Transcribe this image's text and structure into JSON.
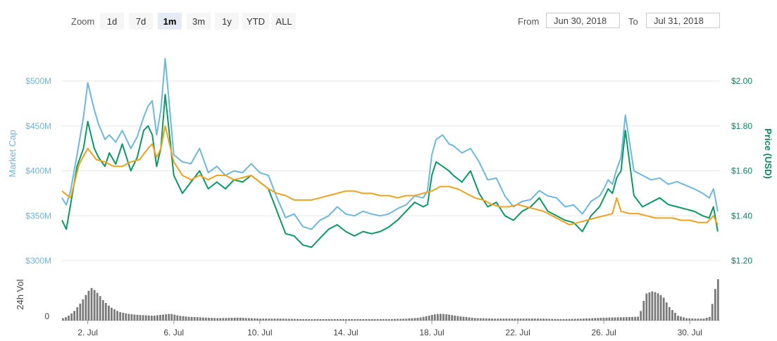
{
  "zoom": {
    "label": "Zoom",
    "buttons": [
      "1d",
      "7d",
      "1m",
      "3m",
      "1y",
      "YTD",
      "ALL"
    ],
    "active": "1m"
  },
  "range": {
    "from_label": "From",
    "from_value": "Jun 30, 2018",
    "to_label": "To",
    "to_value": "Jul 31, 2018"
  },
  "colors": {
    "market_cap": "#6cb8e0",
    "price": "#0a9a62",
    "btc_price": "#f0a21c",
    "volume": "#7a7a7a"
  },
  "chart_data": {
    "type": "line",
    "left_axis": {
      "title": "Market Cap",
      "ticks": [
        "$300M",
        "$350M",
        "$400M",
        "$450M",
        "$500M"
      ],
      "range": [
        300,
        500
      ]
    },
    "right_axis": {
      "title": "Price (USD)",
      "ticks": [
        "$1.20",
        "$1.40",
        "$1.60",
        "$1.80",
        "$2.00"
      ],
      "range": [
        1.2,
        2.0
      ]
    },
    "volume_axis": {
      "title": "24h Vol",
      "ticks": [
        "0"
      ]
    },
    "x_ticks": [
      "2. Jul",
      "6. Jul",
      "10. Jul",
      "14. Jul",
      "18. Jul",
      "22. Jul",
      "26. Jul",
      "30. Jul"
    ],
    "x_tick_days": [
      2,
      6,
      10,
      14,
      18,
      22,
      26,
      30
    ],
    "x_range": [
      0.8,
      31.4
    ],
    "grid": true,
    "series": [
      {
        "key": "market_cap",
        "axis": "left",
        "x": [
          0.8,
          1.0,
          1.2,
          1.5,
          1.8,
          2.0,
          2.3,
          2.5,
          2.8,
          3.0,
          3.3,
          3.6,
          4.0,
          4.3,
          4.6,
          4.8,
          5.0,
          5.2,
          5.4,
          5.6,
          6.0,
          6.4,
          6.8,
          7.2,
          7.6,
          8.0,
          8.4,
          8.8,
          9.2,
          9.6,
          10.0,
          10.4,
          10.8,
          11.2,
          11.6,
          12.0,
          12.4,
          12.8,
          13.2,
          13.6,
          14.0,
          14.4,
          14.8,
          15.2,
          15.6,
          16.0,
          16.4,
          16.8,
          17.2,
          17.6,
          17.8,
          18.0,
          18.2,
          18.5,
          18.8,
          19.0,
          19.4,
          19.8,
          20.2,
          20.6,
          21.0,
          21.4,
          21.8,
          22.2,
          22.6,
          23.0,
          23.4,
          23.8,
          24.2,
          24.6,
          25.0,
          25.4,
          25.8,
          26.0,
          26.2,
          26.4,
          26.6,
          26.8,
          27.0,
          27.4,
          27.8,
          28.2,
          28.6,
          29.0,
          29.4,
          29.8,
          30.2,
          30.6,
          30.9,
          31.1,
          31.3
        ],
        "values": [
          370,
          362,
          378,
          418,
          460,
          498,
          468,
          452,
          435,
          440,
          432,
          445,
          425,
          438,
          460,
          472,
          478,
          440,
          468,
          525,
          418,
          410,
          408,
          425,
          398,
          405,
          395,
          400,
          398,
          408,
          398,
          395,
          370,
          348,
          352,
          338,
          335,
          345,
          350,
          360,
          352,
          350,
          355,
          352,
          350,
          352,
          358,
          362,
          372,
          370,
          378,
          418,
          435,
          440,
          430,
          428,
          420,
          425,
          410,
          390,
          392,
          372,
          360,
          366,
          368,
          378,
          372,
          370,
          360,
          362,
          352,
          366,
          372,
          380,
          390,
          385,
          402,
          415,
          462,
          400,
          395,
          390,
          392,
          385,
          388,
          384,
          380,
          375,
          370,
          380,
          355
        ]
      },
      {
        "key": "price",
        "axis": "right",
        "x": [
          0.8,
          1.0,
          1.2,
          1.5,
          1.8,
          2.0,
          2.3,
          2.5,
          2.8,
          3.0,
          3.3,
          3.6,
          4.0,
          4.3,
          4.6,
          4.8,
          5.0,
          5.2,
          5.4,
          5.6,
          6.0,
          6.4,
          6.8,
          7.2,
          7.6,
          8.0,
          8.4,
          8.8,
          9.2,
          9.6,
          10.0,
          10.4,
          10.8,
          11.2,
          11.6,
          12.0,
          12.4,
          12.8,
          13.2,
          13.6,
          14.0,
          14.4,
          14.8,
          15.2,
          15.6,
          16.0,
          16.4,
          16.8,
          17.2,
          17.6,
          17.8,
          18.0,
          18.2,
          18.5,
          18.8,
          19.0,
          19.4,
          19.8,
          20.2,
          20.6,
          21.0,
          21.4,
          21.8,
          22.2,
          22.6,
          23.0,
          23.4,
          23.8,
          24.2,
          24.6,
          25.0,
          25.4,
          25.8,
          26.0,
          26.2,
          26.4,
          26.6,
          26.8,
          27.0,
          27.4,
          27.8,
          28.2,
          28.6,
          29.0,
          29.4,
          29.8,
          30.2,
          30.6,
          30.9,
          31.1,
          31.3
        ],
        "values": [
          1.38,
          1.34,
          1.45,
          1.62,
          1.7,
          1.82,
          1.7,
          1.66,
          1.62,
          1.68,
          1.63,
          1.72,
          1.6,
          1.66,
          1.78,
          1.8,
          1.76,
          1.62,
          1.7,
          1.94,
          1.58,
          1.5,
          1.55,
          1.6,
          1.52,
          1.55,
          1.52,
          1.56,
          1.55,
          1.58,
          1.55,
          1.52,
          1.42,
          1.32,
          1.31,
          1.27,
          1.26,
          1.3,
          1.34,
          1.36,
          1.33,
          1.31,
          1.33,
          1.32,
          1.33,
          1.35,
          1.38,
          1.42,
          1.46,
          1.44,
          1.45,
          1.58,
          1.64,
          1.62,
          1.6,
          1.58,
          1.55,
          1.6,
          1.5,
          1.44,
          1.46,
          1.4,
          1.38,
          1.42,
          1.44,
          1.48,
          1.42,
          1.4,
          1.38,
          1.37,
          1.33,
          1.4,
          1.44,
          1.48,
          1.52,
          1.5,
          1.57,
          1.6,
          1.78,
          1.49,
          1.44,
          1.46,
          1.48,
          1.45,
          1.44,
          1.43,
          1.42,
          1.4,
          1.39,
          1.44,
          1.33
        ]
      },
      {
        "key": "btc_price",
        "axis": "right",
        "x": [
          0.8,
          1.2,
          1.6,
          2.0,
          2.4,
          2.8,
          3.2,
          3.6,
          4.0,
          4.4,
          4.8,
          5.0,
          5.2,
          5.4,
          5.6,
          6.0,
          6.4,
          6.8,
          7.2,
          7.6,
          8.0,
          8.4,
          8.8,
          9.2,
          9.6,
          10.0,
          10.4,
          10.8,
          11.2,
          11.6,
          12.0,
          12.4,
          12.8,
          13.2,
          13.6,
          14.0,
          14.4,
          14.8,
          15.2,
          15.6,
          16.0,
          16.4,
          16.8,
          17.2,
          17.6,
          18.0,
          18.4,
          18.8,
          19.2,
          19.6,
          20.0,
          20.4,
          20.8,
          21.2,
          21.6,
          22.0,
          22.4,
          22.8,
          23.2,
          23.6,
          24.0,
          24.4,
          24.8,
          25.2,
          25.6,
          26.0,
          26.4,
          26.6,
          26.8,
          27.2,
          27.6,
          28.0,
          28.4,
          28.8,
          29.2,
          29.6,
          30.0,
          30.4,
          30.8,
          31.1,
          31.3
        ],
        "values": [
          1.51,
          1.48,
          1.63,
          1.7,
          1.65,
          1.64,
          1.62,
          1.62,
          1.64,
          1.65,
          1.7,
          1.72,
          1.66,
          1.7,
          1.8,
          1.64,
          1.58,
          1.56,
          1.58,
          1.56,
          1.58,
          1.58,
          1.56,
          1.57,
          1.58,
          1.55,
          1.52,
          1.5,
          1.49,
          1.47,
          1.47,
          1.47,
          1.48,
          1.49,
          1.5,
          1.51,
          1.51,
          1.5,
          1.5,
          1.49,
          1.49,
          1.48,
          1.49,
          1.49,
          1.5,
          1.51,
          1.53,
          1.53,
          1.52,
          1.5,
          1.48,
          1.47,
          1.45,
          1.44,
          1.44,
          1.45,
          1.44,
          1.43,
          1.42,
          1.4,
          1.38,
          1.36,
          1.37,
          1.38,
          1.39,
          1.4,
          1.41,
          1.48,
          1.42,
          1.41,
          1.41,
          1.4,
          1.39,
          1.39,
          1.39,
          1.38,
          1.38,
          1.37,
          1.37,
          1.4,
          1.36
        ]
      }
    ],
    "volume": {
      "x": [
        0.8,
        1.0,
        1.3,
        1.6,
        1.9,
        2.1,
        2.3,
        2.5,
        2.7,
        3.0,
        3.4,
        3.8,
        4.2,
        4.6,
        5.0,
        5.4,
        5.8,
        6.2,
        6.6,
        7.0,
        8.0,
        9.0,
        10.0,
        11.0,
        12.0,
        13.0,
        14.0,
        15.0,
        16.0,
        16.8,
        17.4,
        17.8,
        18.1,
        18.4,
        18.8,
        19.2,
        19.6,
        20.0,
        21.0,
        22.0,
        23.0,
        24.0,
        25.0,
        26.0,
        27.0,
        27.6,
        27.9,
        28.2,
        28.4,
        28.7,
        29.0,
        29.4,
        29.8,
        30.2,
        30.6,
        30.9,
        31.1,
        31.3
      ],
      "values": [
        5,
        8,
        18,
        35,
        55,
        68,
        62,
        52,
        40,
        28,
        18,
        14,
        12,
        11,
        10,
        12,
        14,
        10,
        8,
        7,
        5,
        6,
        4,
        4,
        3,
        3,
        3,
        3,
        3,
        4,
        6,
        10,
        13,
        14,
        12,
        9,
        7,
        5,
        4,
        4,
        4,
        3,
        4,
        6,
        7,
        8,
        55,
        60,
        58,
        50,
        28,
        10,
        5,
        4,
        4,
        8,
        60,
        90
      ]
    }
  }
}
